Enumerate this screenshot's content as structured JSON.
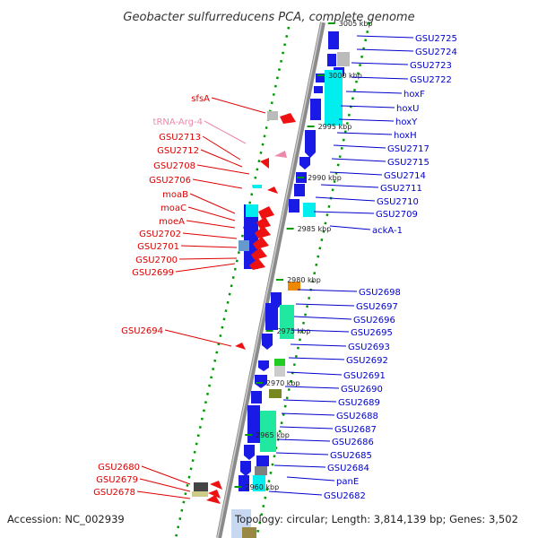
{
  "title": "Geobacter sulfurreducens PCA, complete genome",
  "accession": "Accession: NC_002939",
  "topology": "Topology: circular; Length: 3,814,139 bp; Genes: 3,502",
  "colors": {
    "right_label": "#0000cc",
    "left_label": "#dd0000",
    "trna_label": "#ee88aa",
    "backbone": "#808080",
    "tick": "#009900",
    "gene_blue": "#1a1ae6",
    "gene_red": "#ee1111",
    "cyan": "#00eeee",
    "teal": "#20e8a0"
  },
  "scale_labels": [
    "3005 kbp",
    "3000 kbp",
    "2995 kbp",
    "2990 kbp",
    "2985 kbp",
    "2980 kbp",
    "2975 kbp",
    "2970 kbp",
    "2965 kbp",
    "2960 kbp"
  ],
  "right_genes": [
    "GSU2725",
    "GSU2724",
    "GSU2723",
    "GSU2722",
    "hoxF",
    "hoxU",
    "hoxY",
    "hoxH",
    "GSU2717",
    "GSU2715",
    "GSU2714",
    "GSU2711",
    "GSU2710",
    "GSU2709",
    "ackA-1",
    "GSU2698",
    "GSU2697",
    "GSU2696",
    "GSU2695",
    "GSU2693",
    "GSU2692",
    "GSU2691",
    "GSU2690",
    "GSU2689",
    "GSU2688",
    "GSU2687",
    "GSU2686",
    "GSU2685",
    "GSU2684",
    "panE",
    "GSU2682"
  ],
  "left_genes": [
    "sfsA",
    "tRNA-Arg-4",
    "GSU2713",
    "GSU2712",
    "GSU2708",
    "GSU2706",
    "moaB",
    "moaC",
    "moeA",
    "GSU2702",
    "GSU2701",
    "GSU2700",
    "GSU2699",
    "GSU2694",
    "GSU2680",
    "GSU2679",
    "GSU2678"
  ]
}
